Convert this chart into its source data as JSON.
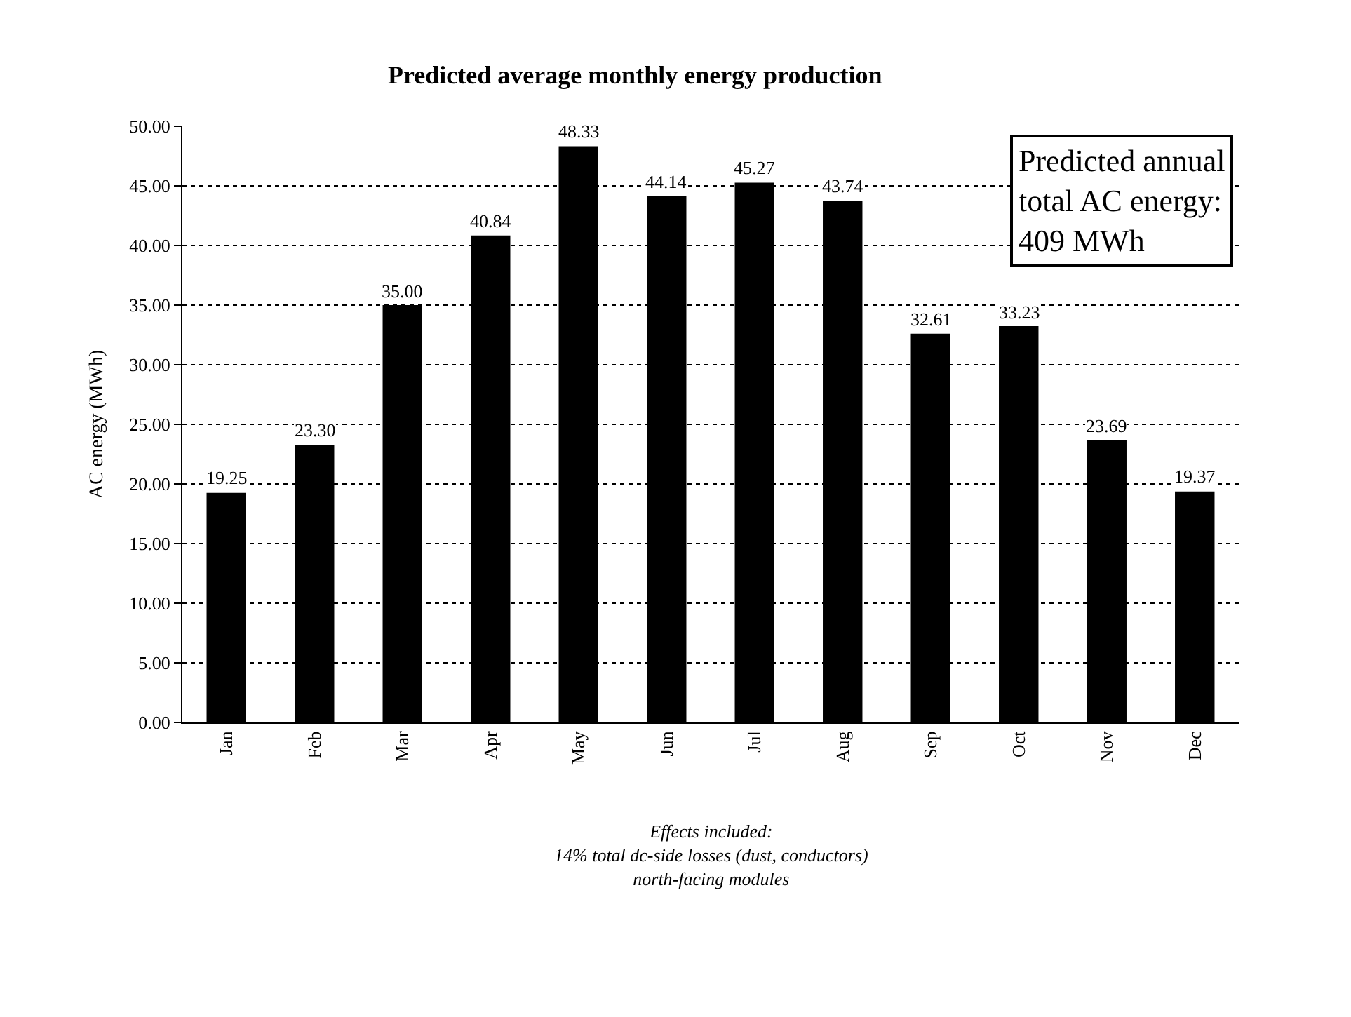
{
  "chart_data": {
    "type": "bar",
    "title": "Predicted average monthly energy production",
    "ylabel": "AC energy (MWh)",
    "categories": [
      "Jan",
      "Feb",
      "Mar",
      "Apr",
      "May",
      "Jun",
      "Jul",
      "Aug",
      "Sep",
      "Oct",
      "Nov",
      "Dec"
    ],
    "values": [
      19.25,
      23.3,
      35.0,
      40.84,
      48.33,
      44.14,
      45.27,
      43.74,
      32.61,
      33.23,
      23.69,
      19.37
    ],
    "value_labels": [
      "19.25",
      "23.30",
      "35.00",
      "40.84",
      "48.33",
      "44.14",
      "45.27",
      "43.74",
      "32.61",
      "33.23",
      "23.69",
      "19.37"
    ],
    "color": "#000000",
    "ylim": [
      0,
      50
    ],
    "yticks": [
      {
        "value": 0,
        "label": "0.00"
      },
      {
        "value": 5,
        "label": "5.00"
      },
      {
        "value": 10,
        "label": "10.00"
      },
      {
        "value": 15,
        "label": "15.00"
      },
      {
        "value": 20,
        "label": "20.00"
      },
      {
        "value": 25,
        "label": "25.00"
      },
      {
        "value": 30,
        "label": "30.00"
      },
      {
        "value": 35,
        "label": "35.00"
      },
      {
        "value": 40,
        "label": "40.00"
      },
      {
        "value": 45,
        "label": "45.00"
      },
      {
        "value": 50,
        "label": "50.00"
      }
    ],
    "grid": "y",
    "line_style": "dotted",
    "annotations": [
      "Predicted annual\ntotal AC energy:\n409 MWh",
      "Effects included:\n14% total dc-side losses (dust, conductors)\nnorth-facing modules"
    ]
  }
}
